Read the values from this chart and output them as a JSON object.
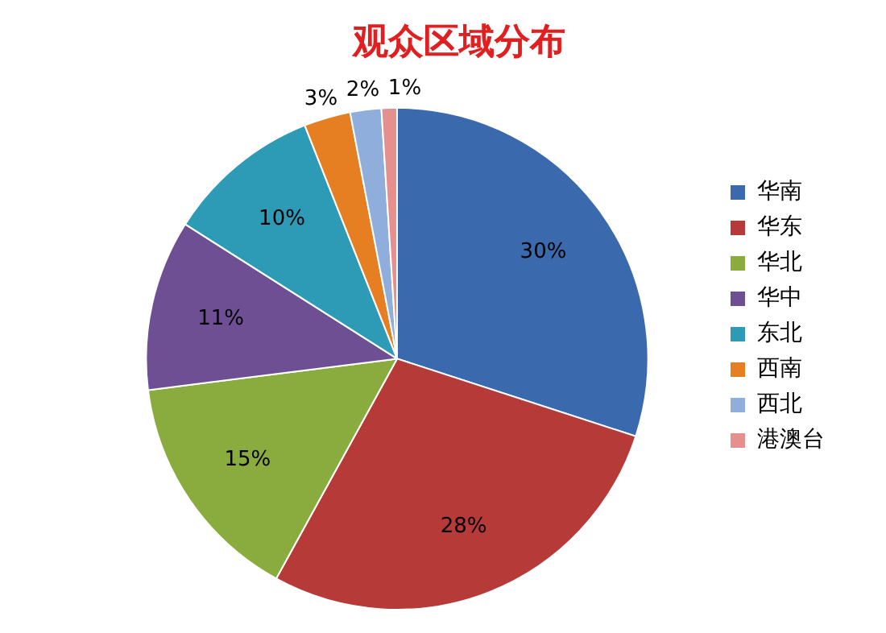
{
  "chart_data": {
    "type": "pie",
    "title": "观众区域分布",
    "categories": [
      "华南",
      "华东",
      "华北",
      "华中",
      "东北",
      "西南",
      "西北",
      "港澳台"
    ],
    "values": [
      30,
      28,
      15,
      11,
      10,
      3,
      2,
      1
    ],
    "colors": [
      "#3a6aad",
      "#b63a37",
      "#8aab3e",
      "#6f4f93",
      "#2e9bb6",
      "#e57f22",
      "#8faedb",
      "#e5908f"
    ],
    "value_labels": [
      "30%",
      "28%",
      "15%",
      "11%",
      "10%",
      "3%",
      "2%",
      "1%"
    ],
    "legend": "right"
  }
}
